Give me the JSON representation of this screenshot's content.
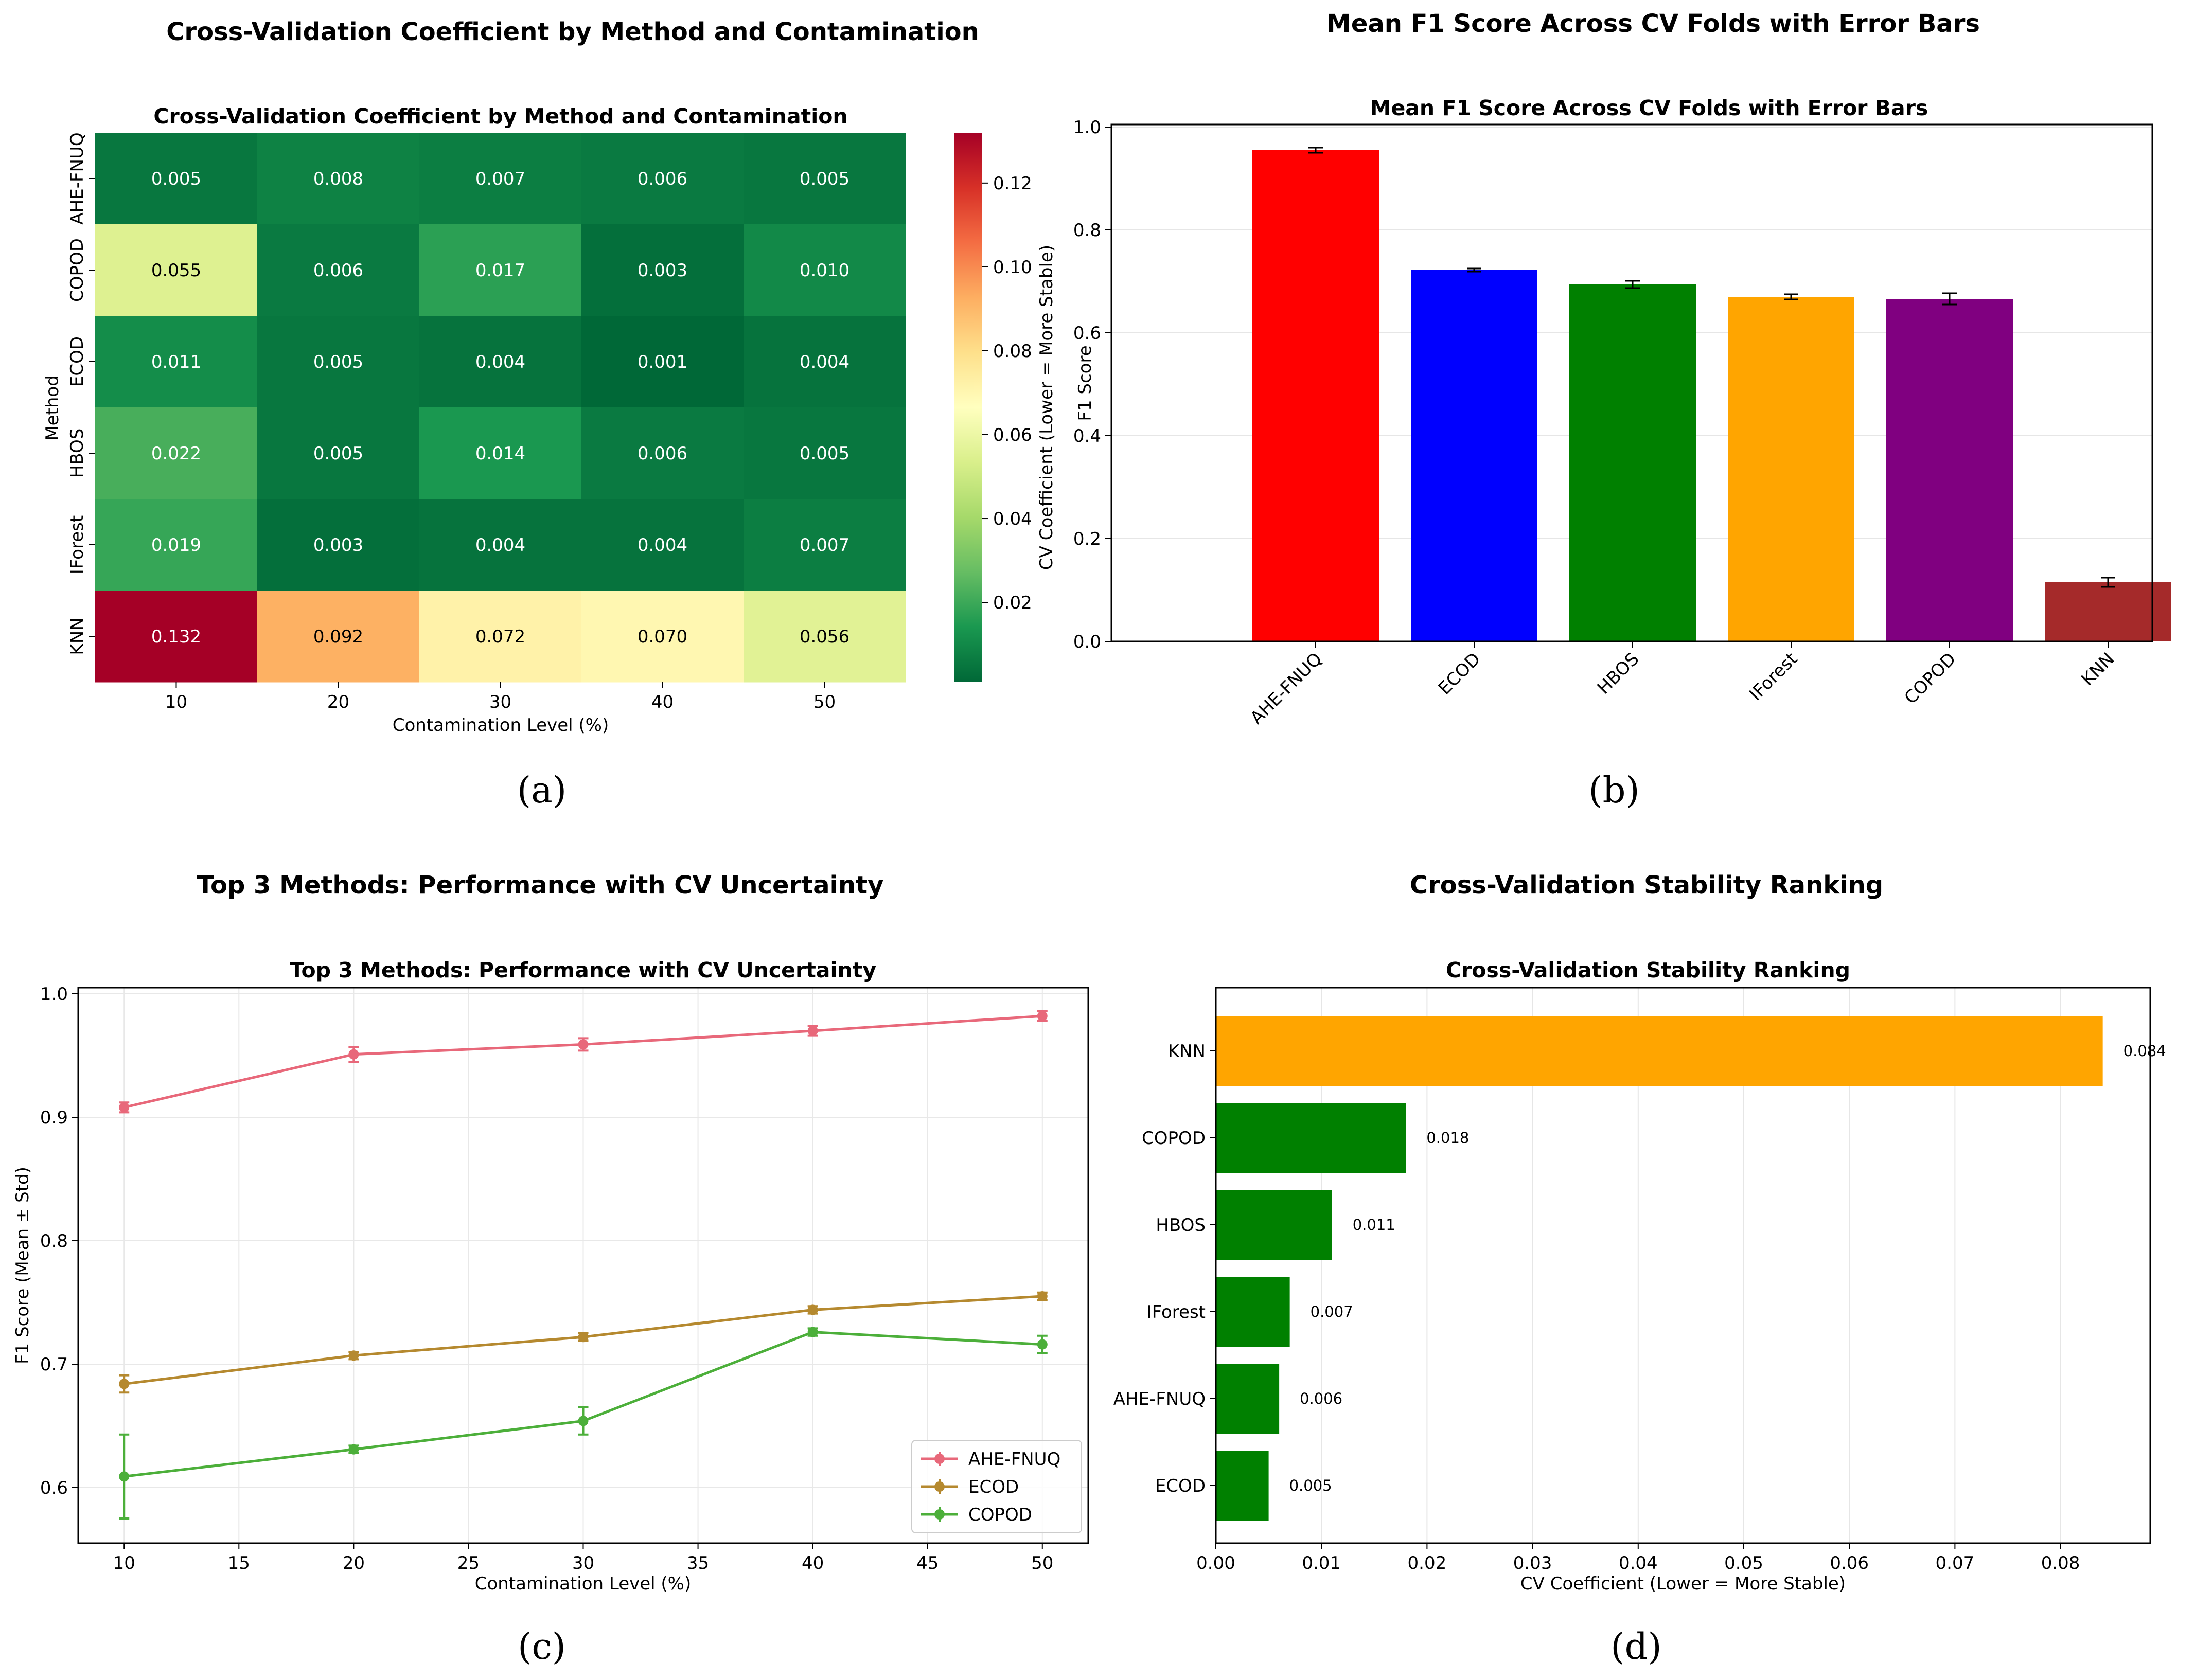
{
  "panel_labels": {
    "a": "(a)",
    "b": "(b)",
    "c": "(c)",
    "d": "(d)"
  },
  "chart_data": [
    {
      "id": "a",
      "type": "heatmap",
      "outer_title": "Cross-Validation Coefficient by Method and Contamination",
      "title": "Cross-Validation Coefficient by Method and Contamination",
      "xlabel": "Contamination Level (%)",
      "ylabel": "Method",
      "x_categories": [
        "10",
        "20",
        "30",
        "40",
        "50"
      ],
      "y_categories": [
        "AHE-FNUQ",
        "COPOD",
        "ECOD",
        "HBOS",
        "IForest",
        "KNN"
      ],
      "values": [
        [
          0.005,
          0.008,
          0.007,
          0.006,
          0.005
        ],
        [
          0.055,
          0.006,
          0.017,
          0.003,
          0.01
        ],
        [
          0.011,
          0.005,
          0.004,
          0.001,
          0.004
        ],
        [
          0.022,
          0.005,
          0.014,
          0.006,
          0.005
        ],
        [
          0.019,
          0.003,
          0.004,
          0.004,
          0.007
        ],
        [
          0.132,
          0.092,
          0.072,
          0.07,
          0.056
        ]
      ],
      "labels": [
        [
          "0.005",
          "0.008",
          "0.007",
          "0.006",
          "0.005"
        ],
        [
          "0.055",
          "0.006",
          "0.017",
          "0.003",
          "0.010"
        ],
        [
          "0.011",
          "0.005",
          "0.004",
          "0.001",
          "0.004"
        ],
        [
          "0.022",
          "0.005",
          "0.014",
          "0.006",
          "0.005"
        ],
        [
          "0.019",
          "0.003",
          "0.004",
          "0.004",
          "0.007"
        ],
        [
          "0.132",
          "0.092",
          "0.072",
          "0.070",
          "0.056"
        ]
      ],
      "colormap": "RdYlGn_r",
      "vmin": 0.001,
      "vmax": 0.132,
      "colorbar_label": "CV Coefficient (Lower = More Stable)",
      "colorbar_ticks": [
        0.02,
        0.04,
        0.06,
        0.08,
        0.1,
        0.12
      ],
      "colorbar_tick_labels": [
        "0.02",
        "0.04",
        "0.06",
        "0.08",
        "0.10",
        "0.12"
      ]
    },
    {
      "id": "b",
      "type": "bar",
      "outer_title": "Mean F1 Score Across CV Folds with Error Bars",
      "title": "Mean F1 Score Across CV Folds with Error Bars",
      "xlabel": "",
      "ylabel": "F1 Score",
      "categories": [
        "AHE-FNUQ",
        "ECOD",
        "HBOS",
        "IForest",
        "COPOD",
        "KNN"
      ],
      "values": [
        0.955,
        0.722,
        0.694,
        0.67,
        0.666,
        0.115
      ],
      "errors": [
        0.005,
        0.003,
        0.007,
        0.005,
        0.011,
        0.009
      ],
      "colors": [
        "#ff0000",
        "#0000ff",
        "#008000",
        "#ffa500",
        "#800080",
        "#a52a2a"
      ],
      "ylim": [
        0,
        1.0
      ],
      "yticks": [
        0.0,
        0.2,
        0.4,
        0.6,
        0.8,
        1.0
      ],
      "ytick_labels": [
        "0.0",
        "0.2",
        "0.4",
        "0.6",
        "0.8",
        "1.0"
      ],
      "grid": "y"
    },
    {
      "id": "c",
      "type": "line",
      "outer_title": "Top 3 Methods: Performance with CV Uncertainty",
      "title": "Top 3 Methods: Performance with CV Uncertainty",
      "xlabel": "Contamination Level (%)",
      "ylabel": "F1 Score (Mean ± Std)",
      "x": [
        10,
        20,
        30,
        40,
        50
      ],
      "series": [
        {
          "name": "AHE-FNUQ",
          "color": "#e8687a",
          "values": [
            0.908,
            0.951,
            0.959,
            0.97,
            0.982
          ],
          "errors": [
            0.004,
            0.006,
            0.005,
            0.004,
            0.004
          ]
        },
        {
          "name": "ECOD",
          "color": "#b5892f",
          "values": [
            0.684,
            0.707,
            0.722,
            0.744,
            0.755
          ],
          "errors": [
            0.007,
            0.003,
            0.003,
            0.003,
            0.003
          ]
        },
        {
          "name": "COPOD",
          "color": "#4caf3a",
          "values": [
            0.609,
            0.631,
            0.654,
            0.726,
            0.716
          ],
          "errors": [
            0.034,
            0.003,
            0.011,
            0.003,
            0.007
          ]
        }
      ],
      "xlim": [
        8,
        52
      ],
      "ylim": [
        0.555,
        1.005
      ],
      "xticks": [
        10,
        15,
        20,
        25,
        30,
        35,
        40,
        45,
        50
      ],
      "xtick_labels": [
        "10",
        "15",
        "20",
        "25",
        "30",
        "35",
        "40",
        "45",
        "50"
      ],
      "yticks": [
        0.6,
        0.7,
        0.8,
        0.9,
        1.0
      ],
      "ytick_labels": [
        "0.6",
        "0.7",
        "0.8",
        "0.9",
        "1.0"
      ],
      "legend": "lower-right",
      "grid": true
    },
    {
      "id": "d",
      "type": "bar",
      "orientation": "horizontal",
      "outer_title": "Cross-Validation Stability Ranking",
      "title": "Cross-Validation Stability Ranking",
      "xlabel": "CV Coefficient (Lower = More Stable)",
      "ylabel": "",
      "categories": [
        "KNN",
        "COPOD",
        "HBOS",
        "IForest",
        "AHE-FNUQ",
        "ECOD"
      ],
      "values": [
        0.084,
        0.018,
        0.011,
        0.007,
        0.006,
        0.005
      ],
      "value_labels": [
        "0.084",
        "0.018",
        "0.011",
        "0.007",
        "0.006",
        "0.005"
      ],
      "colors": [
        "#ffa500",
        "#008000",
        "#008000",
        "#008000",
        "#008000",
        "#008000"
      ],
      "xlim": [
        0,
        0.0885
      ],
      "xticks": [
        0,
        0.01,
        0.02,
        0.03,
        0.04,
        0.05,
        0.06,
        0.07,
        0.08
      ],
      "xtick_labels": [
        "0.00",
        "0.01",
        "0.02",
        "0.03",
        "0.04",
        "0.05",
        "0.06",
        "0.07",
        "0.08"
      ],
      "grid": "x"
    }
  ]
}
